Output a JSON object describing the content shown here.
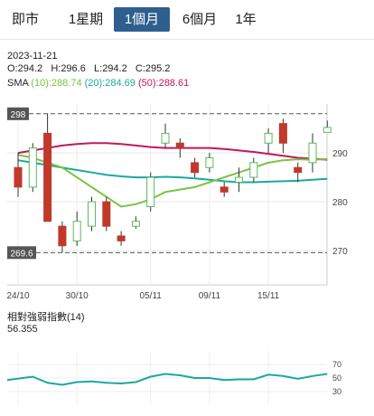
{
  "tabs": [
    {
      "label": "即市",
      "active": false
    },
    {
      "label": "1星期",
      "active": false
    },
    {
      "label": "1個月",
      "active": true
    },
    {
      "label": "6個月",
      "active": false
    },
    {
      "label": "1年",
      "active": false
    }
  ],
  "quote": {
    "date": "2023-11-21",
    "ohlc": {
      "o": "O:294.2",
      "h": "H:296.6",
      "l": "L:294.2",
      "c": "C:295.2"
    },
    "sma_label": "SMA",
    "sma10": "(10):288.74",
    "sma20": "(20):284.69",
    "sma50": "(50):288.61"
  },
  "colors": {
    "up": "#5cb85c",
    "down": "#c0392b",
    "sma10": "#7dc242",
    "sma20": "#1aa9a0",
    "sma50": "#c2185b",
    "rsi": "#1aa9a0",
    "active_tab": "#2f5f8f"
  },
  "chart_data": {
    "type": "candlestick",
    "y_ticks": [
      "290",
      "280",
      "270"
    ],
    "ylim": [
      263,
      300
    ],
    "x_ticks": [
      "24/10",
      "30/10",
      "05/11",
      "09/11",
      "15/11"
    ],
    "high_marker": "298",
    "low_marker": "269.6",
    "candles": [
      {
        "o": 287,
        "c": 283,
        "h": 290,
        "l": 281
      },
      {
        "o": 283,
        "c": 291,
        "h": 292,
        "l": 282
      },
      {
        "o": 294,
        "c": 276,
        "h": 298,
        "l": 276
      },
      {
        "o": 275,
        "c": 271,
        "h": 276,
        "l": 269.6
      },
      {
        "o": 272,
        "c": 276,
        "h": 278,
        "l": 271
      },
      {
        "o": 275,
        "c": 280,
        "h": 281,
        "l": 274
      },
      {
        "o": 280,
        "c": 275,
        "h": 281,
        "l": 274
      },
      {
        "o": 273,
        "c": 272,
        "h": 274,
        "l": 271
      },
      {
        "o": 275,
        "c": 276,
        "h": 277,
        "l": 274.5
      },
      {
        "o": 279,
        "c": 285,
        "h": 286,
        "l": 278
      },
      {
        "o": 292,
        "c": 294,
        "h": 296,
        "l": 291
      },
      {
        "o": 292,
        "c": 291,
        "h": 293,
        "l": 289
      },
      {
        "o": 288,
        "c": 286,
        "h": 289,
        "l": 285
      },
      {
        "o": 287,
        "c": 289,
        "h": 290,
        "l": 286
      },
      {
        "o": 283,
        "c": 282,
        "h": 284,
        "l": 281
      },
      {
        "o": 284,
        "c": 285,
        "h": 287,
        "l": 282
      },
      {
        "o": 285,
        "c": 288,
        "h": 289,
        "l": 284
      },
      {
        "o": 292,
        "c": 294,
        "h": 295,
        "l": 290
      },
      {
        "o": 296,
        "c": 292,
        "h": 297,
        "l": 290
      },
      {
        "o": 287,
        "c": 286,
        "h": 288,
        "l": 284
      },
      {
        "o": 288,
        "c": 292,
        "h": 294,
        "l": 286
      },
      {
        "o": 294.2,
        "c": 295.2,
        "h": 296.6,
        "l": 294.2
      }
    ],
    "sma10": [
      289.6,
      289,
      288,
      287,
      285,
      283,
      281,
      279,
      279.5,
      280.5,
      282,
      282.5,
      283,
      284,
      285,
      286,
      287,
      288,
      288.5,
      288.7,
      288.6,
      288.74
    ],
    "sma20": [
      288.5,
      288,
      287.5,
      287,
      286.5,
      286,
      285.5,
      285.2,
      285,
      285,
      285.1,
      285,
      284.8,
      284.5,
      284.2,
      284,
      284,
      284.1,
      284.2,
      284.3,
      284.5,
      284.69
    ],
    "sma50": [
      290,
      290.5,
      291,
      291.5,
      291.8,
      292,
      292,
      291.8,
      291.5,
      291.2,
      291,
      291,
      291,
      291,
      290.8,
      290.5,
      290.2,
      289.8,
      289.4,
      289,
      288.8,
      288.61
    ],
    "rsi": {
      "title": "相對強弱指數",
      "period": "(14)",
      "value": "56.355",
      "y_ticks": [
        "70",
        "50",
        "30"
      ],
      "ylim": [
        10,
        90
      ],
      "values": [
        47,
        52,
        43,
        40,
        44,
        45,
        43,
        42,
        44,
        52,
        56,
        54,
        50,
        50,
        47,
        48,
        48,
        55,
        53,
        49,
        53,
        56
      ]
    }
  }
}
